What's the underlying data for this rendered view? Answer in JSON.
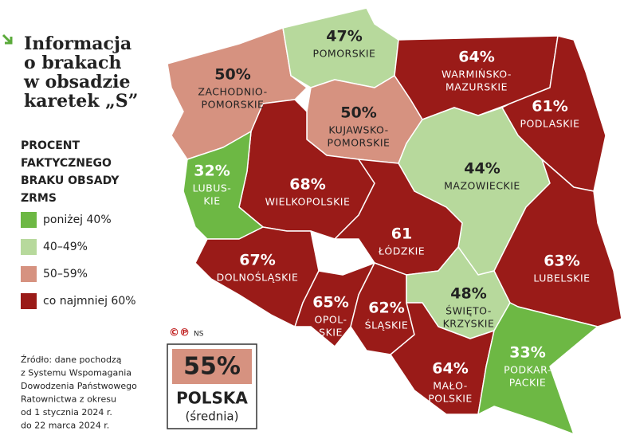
{
  "title": [
    "Informacja",
    "o brakach",
    "w obsadzie",
    "karetek „S”"
  ],
  "legend": {
    "title": [
      "PROCENT",
      "FAKTYCZNEGO",
      "BRAKU OBSADY",
      "ZRMS"
    ],
    "items": [
      {
        "label": "poniżej 40%",
        "color": "#6db844"
      },
      {
        "label": "40–49%",
        "color": "#b7d99c"
      },
      {
        "label": "50–59%",
        "color": "#d69280"
      },
      {
        "label": "co najmniej 60%",
        "color": "#9a1b18"
      }
    ]
  },
  "regions": [
    {
      "name": [
        "ZACHODNIO-",
        "POMORSKIE"
      ],
      "value": 50,
      "value_label": "50%",
      "color": "#d69280"
    },
    {
      "name": [
        "POMORSKIE"
      ],
      "value": 47,
      "value_label": "47%",
      "color": "#b7d99c"
    },
    {
      "name": [
        "WARMIŃSKO-",
        "MAZURSKIE"
      ],
      "value": 64,
      "value_label": "64%",
      "color": "#9a1b18"
    },
    {
      "name": [
        "PODLASKIE"
      ],
      "value": 61,
      "value_label": "61%",
      "color": "#9a1b18"
    },
    {
      "name": [
        "KUJAWSKO-",
        "POMORSKIE"
      ],
      "value": 50,
      "value_label": "50%",
      "color": "#d69280"
    },
    {
      "name": [
        "WIELKOPOLSKIE"
      ],
      "value": 68,
      "value_label": "68%",
      "color": "#9a1b18"
    },
    {
      "name": [
        "LUBUS-",
        "KIE"
      ],
      "value": 32,
      "value_label": "32%",
      "color": "#6db844"
    },
    {
      "name": [
        "MAZOWIECKIE"
      ],
      "value": 44,
      "value_label": "44%",
      "color": "#b7d99c"
    },
    {
      "name": [
        "ŁÓDZKIE"
      ],
      "value": 61,
      "value_label": "61",
      "color": "#9a1b18"
    },
    {
      "name": [
        "DOLNOŚLĄSKIE"
      ],
      "value": 67,
      "value_label": "67%",
      "color": "#9a1b18"
    },
    {
      "name": [
        "OPOL-",
        "SKIE"
      ],
      "value": 65,
      "value_label": "65%",
      "color": "#9a1b18"
    },
    {
      "name": [
        "ŚLĄSKIE"
      ],
      "value": 62,
      "value_label": "62%",
      "color": "#9a1b18"
    },
    {
      "name": [
        "ŚWIĘTO-",
        "KRZYSKIE"
      ],
      "value": 48,
      "value_label": "48%",
      "color": "#b7d99c"
    },
    {
      "name": [
        "LUBELSKIE"
      ],
      "value": 63,
      "value_label": "63%",
      "color": "#9a1b18"
    },
    {
      "name": [
        "MAŁO-",
        "POLSKIE"
      ],
      "value": 64,
      "value_label": "64%",
      "color": "#9a1b18"
    },
    {
      "name": [
        "PODKAR-",
        "PACKIE"
      ],
      "value": 33,
      "value_label": "33%",
      "color": "#6db844"
    }
  ],
  "national": {
    "value": 55,
    "value_label": "55%",
    "name": "POLSKA",
    "note": "(średnia)",
    "color": "#d69280"
  },
  "credit": {
    "symbols": "©℗",
    "author": "NS"
  },
  "source": [
    "Źródło: dane pochodzą",
    "z Systemu Wspomagania",
    "Dowodzenia Państwowego",
    "Ratownictwa z okresu",
    "od 1 stycznia 2024 r.",
    "do 22 marca 2024 r."
  ]
}
